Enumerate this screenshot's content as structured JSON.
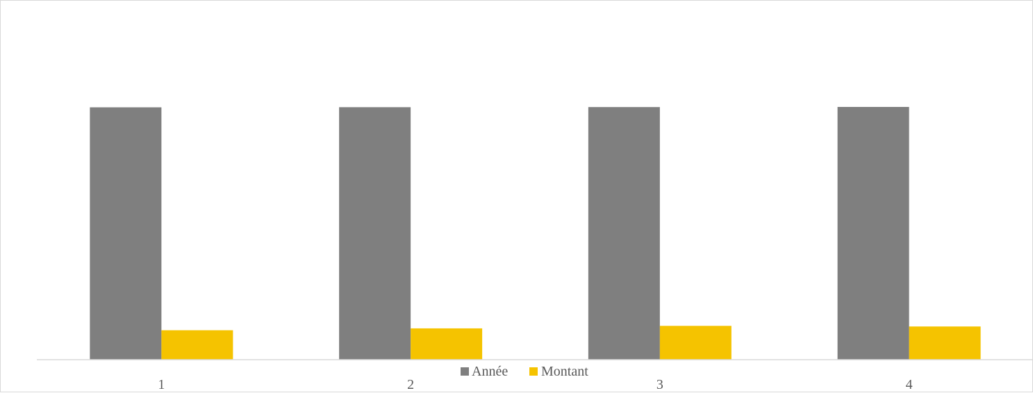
{
  "chart_data": {
    "type": "bar",
    "categories": [
      "1",
      "2",
      "3",
      "4"
    ],
    "series": [
      {
        "name": "Année",
        "values": [
          2015,
          2016,
          2017,
          2018
        ],
        "color": "#7f7f7f"
      },
      {
        "name": "Montant",
        "values": [
          235,
          250,
          270,
          265
        ],
        "color": "#f5c300"
      }
    ],
    "ylim": [
      0,
      2700
    ],
    "grid": false,
    "legend": "bottom",
    "title": "",
    "xlabel": "",
    "ylabel": ""
  }
}
